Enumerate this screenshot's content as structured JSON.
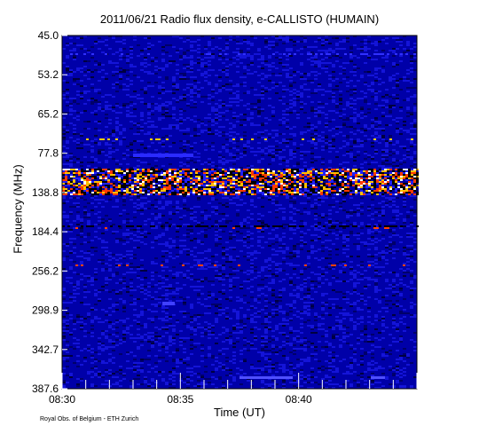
{
  "chart_data": {
    "type": "heatmap",
    "title": "2011/06/21  Radio flux density, e-CALLISTO (HUMAIN)",
    "xlabel": "Time (UT)",
    "ylabel": "Frequency (MHz)",
    "x_tick_labels": [
      "08:30",
      "08:35",
      "08:40"
    ],
    "x_range_ut": [
      "08:30",
      "08:45"
    ],
    "y_tick_labels": [
      "45.0",
      "53.2",
      "65.2",
      "77.8",
      "138.8",
      "184.4",
      "256.2",
      "298.9",
      "342.7",
      "387.6"
    ],
    "y_range_mhz": [
      45.0,
      387.6
    ],
    "colormap": [
      "#0000aa",
      "#1a1aff",
      "#ff4000",
      "#ffcc00",
      "#ffffff",
      "#000000"
    ],
    "features": [
      {
        "type": "persistent-band",
        "frequency_mhz": 138.8,
        "description": "strong broadband emission band across full time range"
      },
      {
        "type": "persistent-line",
        "frequency_mhz": 184.4,
        "description": "narrow interference line"
      },
      {
        "type": "persistent-line",
        "frequency_mhz": 256.2,
        "description": "weak line"
      }
    ],
    "grid": false
  },
  "footer": {
    "credit": "Royal Obs. of Belgium - ETH Zurich"
  }
}
